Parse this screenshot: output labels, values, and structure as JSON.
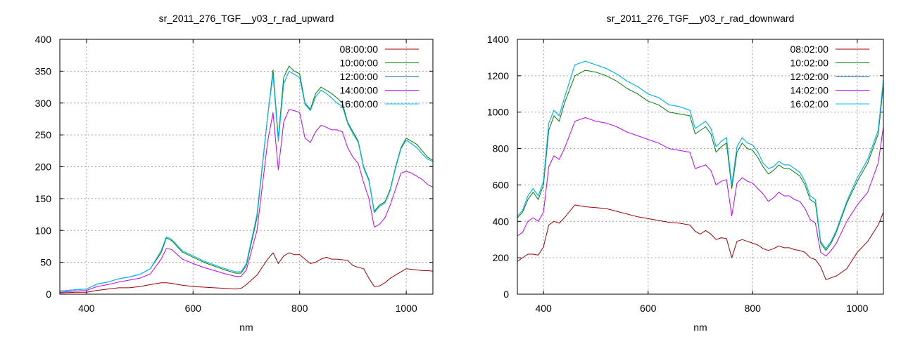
{
  "chart_data": [
    {
      "type": "line",
      "title": "sr_2011_276_TGF__y03_r_rad_upward",
      "xlabel": "nm",
      "ylabel": "",
      "xlim": [
        350,
        1050
      ],
      "ylim": [
        0,
        400
      ],
      "xticks": [
        400,
        600,
        800,
        1000
      ],
      "yticks": [
        0,
        50,
        100,
        150,
        200,
        250,
        300,
        350,
        400
      ],
      "grid": true,
      "legend_position": "top-right",
      "x": [
        350,
        380,
        400,
        420,
        440,
        460,
        480,
        500,
        520,
        540,
        550,
        560,
        580,
        600,
        620,
        640,
        660,
        680,
        690,
        700,
        720,
        740,
        750,
        760,
        770,
        780,
        790,
        800,
        810,
        820,
        830,
        840,
        850,
        860,
        870,
        880,
        890,
        900,
        910,
        920,
        930,
        940,
        950,
        960,
        970,
        980,
        990,
        1000,
        1010,
        1020,
        1030,
        1040,
        1050
      ],
      "series": [
        {
          "name": "08:00:00",
          "color": "#a00000",
          "values": [
            2,
            3,
            3,
            6,
            8,
            10,
            10,
            12,
            15,
            18,
            18,
            17,
            14,
            12,
            11,
            10,
            9,
            8,
            9,
            15,
            30,
            55,
            65,
            48,
            60,
            65,
            62,
            62,
            55,
            48,
            50,
            55,
            58,
            55,
            55,
            54,
            53,
            45,
            42,
            40,
            25,
            12,
            13,
            18,
            25,
            30,
            35,
            40,
            39,
            38,
            37,
            37,
            36
          ]
        },
        {
          "name": "10:00:00",
          "color": "#008000",
          "values": [
            5,
            7,
            8,
            16,
            19,
            24,
            27,
            31,
            40,
            65,
            88,
            84,
            66,
            58,
            50,
            44,
            38,
            33,
            33,
            45,
            120,
            280,
            352,
            245,
            340,
            358,
            350,
            346,
            300,
            290,
            315,
            325,
            320,
            315,
            308,
            300,
            270,
            255,
            240,
            200,
            180,
            130,
            140,
            145,
            165,
            200,
            230,
            245,
            240,
            235,
            225,
            215,
            210
          ]
        },
        {
          "name": "12:00:00",
          "color": "#0060a0",
          "values": [
            5,
            7,
            8,
            16,
            19,
            24,
            27,
            31,
            40,
            68,
            90,
            86,
            68,
            60,
            52,
            46,
            40,
            35,
            35,
            48,
            125,
            280,
            345,
            240,
            330,
            350,
            345,
            340,
            298,
            288,
            310,
            320,
            315,
            308,
            300,
            295,
            268,
            252,
            238,
            198,
            178,
            128,
            138,
            143,
            163,
            198,
            228,
            242,
            236,
            230,
            220,
            212,
            208
          ]
        },
        {
          "name": "14:00:00",
          "color": "#c000ff",
          "values": [
            3,
            5,
            6,
            12,
            15,
            19,
            22,
            25,
            32,
            55,
            72,
            70,
            55,
            48,
            42,
            37,
            32,
            28,
            28,
            38,
            100,
            240,
            285,
            195,
            270,
            290,
            288,
            285,
            245,
            238,
            255,
            265,
            262,
            258,
            258,
            255,
            230,
            215,
            205,
            175,
            150,
            105,
            110,
            120,
            140,
            165,
            190,
            193,
            190,
            185,
            180,
            172,
            168
          ]
        },
        {
          "name": "16:00:00",
          "color": "#00c0ff",
          "values": [
            5,
            7,
            8,
            16,
            19,
            24,
            27,
            31,
            40,
            68,
            90,
            86,
            68,
            60,
            52,
            46,
            40,
            35,
            35,
            48,
            125,
            280,
            345,
            240,
            330,
            350,
            345,
            340,
            298,
            288,
            310,
            320,
            315,
            308,
            300,
            295,
            268,
            252,
            238,
            198,
            178,
            128,
            138,
            143,
            163,
            198,
            228,
            242,
            236,
            230,
            220,
            212,
            208
          ]
        }
      ]
    },
    {
      "type": "line",
      "title": "sr_2011_276_TGF__y03_r_rad_downward",
      "xlabel": "nm",
      "ylabel": "",
      "xlim": [
        350,
        1050
      ],
      "ylim": [
        0,
        1400
      ],
      "xticks": [
        400,
        600,
        800,
        1000
      ],
      "yticks": [
        0,
        200,
        400,
        600,
        800,
        1000,
        1200,
        1400
      ],
      "grid": true,
      "legend_position": "top-right",
      "x": [
        350,
        360,
        370,
        380,
        390,
        400,
        410,
        420,
        430,
        440,
        460,
        480,
        500,
        520,
        540,
        560,
        580,
        600,
        620,
        640,
        660,
        680,
        690,
        700,
        710,
        720,
        730,
        740,
        750,
        760,
        770,
        780,
        790,
        800,
        810,
        820,
        830,
        840,
        850,
        860,
        870,
        880,
        890,
        900,
        910,
        920,
        930,
        940,
        950,
        960,
        980,
        1000,
        1020,
        1040,
        1050
      ],
      "series": [
        {
          "name": "08:02:00",
          "color": "#a00000",
          "values": [
            180,
            200,
            220,
            220,
            215,
            260,
            380,
            400,
            390,
            420,
            490,
            480,
            475,
            470,
            455,
            440,
            425,
            415,
            405,
            395,
            390,
            380,
            345,
            330,
            350,
            330,
            300,
            310,
            305,
            200,
            290,
            300,
            290,
            280,
            270,
            250,
            240,
            250,
            265,
            255,
            255,
            245,
            240,
            230,
            200,
            190,
            150,
            80,
            90,
            100,
            140,
            230,
            290,
            380,
            450
          ]
        },
        {
          "name": "10:02:00",
          "color": "#008000",
          "values": [
            420,
            450,
            520,
            560,
            520,
            600,
            900,
            980,
            950,
            1050,
            1200,
            1230,
            1220,
            1200,
            1170,
            1130,
            1100,
            1060,
            1040,
            1000,
            990,
            980,
            880,
            900,
            920,
            880,
            780,
            810,
            830,
            580,
            780,
            830,
            800,
            790,
            750,
            700,
            660,
            680,
            710,
            690,
            690,
            670,
            650,
            600,
            520,
            500,
            280,
            240,
            280,
            340,
            500,
            620,
            720,
            880,
            1150
          ]
        },
        {
          "name": "12:02:00",
          "color": "#0060a0",
          "values": [
            430,
            460,
            540,
            580,
            540,
            620,
            940,
            1010,
            980,
            1080,
            1260,
            1280,
            1260,
            1240,
            1210,
            1170,
            1140,
            1100,
            1080,
            1040,
            1030,
            1010,
            910,
            930,
            950,
            910,
            810,
            840,
            860,
            600,
            810,
            860,
            830,
            820,
            780,
            720,
            690,
            700,
            730,
            710,
            710,
            690,
            670,
            620,
            540,
            520,
            290,
            250,
            290,
            350,
            510,
            640,
            740,
            900,
            1180
          ]
        },
        {
          "name": "14:02:00",
          "color": "#c000ff",
          "values": [
            320,
            340,
            400,
            420,
            400,
            450,
            700,
            760,
            740,
            800,
            950,
            970,
            950,
            940,
            920,
            890,
            870,
            850,
            830,
            800,
            790,
            780,
            690,
            700,
            710,
            680,
            600,
            620,
            630,
            430,
            610,
            640,
            620,
            610,
            580,
            550,
            510,
            530,
            560,
            540,
            540,
            520,
            510,
            470,
            410,
            390,
            230,
            210,
            240,
            280,
            400,
            490,
            560,
            720,
            920
          ]
        },
        {
          "name": "16:02:00",
          "color": "#00c0ff",
          "values": [
            430,
            460,
            540,
            580,
            540,
            620,
            940,
            1010,
            980,
            1080,
            1260,
            1280,
            1260,
            1240,
            1210,
            1170,
            1140,
            1100,
            1080,
            1040,
            1030,
            1010,
            910,
            930,
            950,
            910,
            810,
            840,
            860,
            600,
            810,
            860,
            830,
            820,
            780,
            720,
            690,
            700,
            730,
            710,
            710,
            690,
            670,
            620,
            540,
            520,
            290,
            250,
            290,
            350,
            510,
            640,
            740,
            900,
            1180
          ]
        }
      ]
    }
  ]
}
